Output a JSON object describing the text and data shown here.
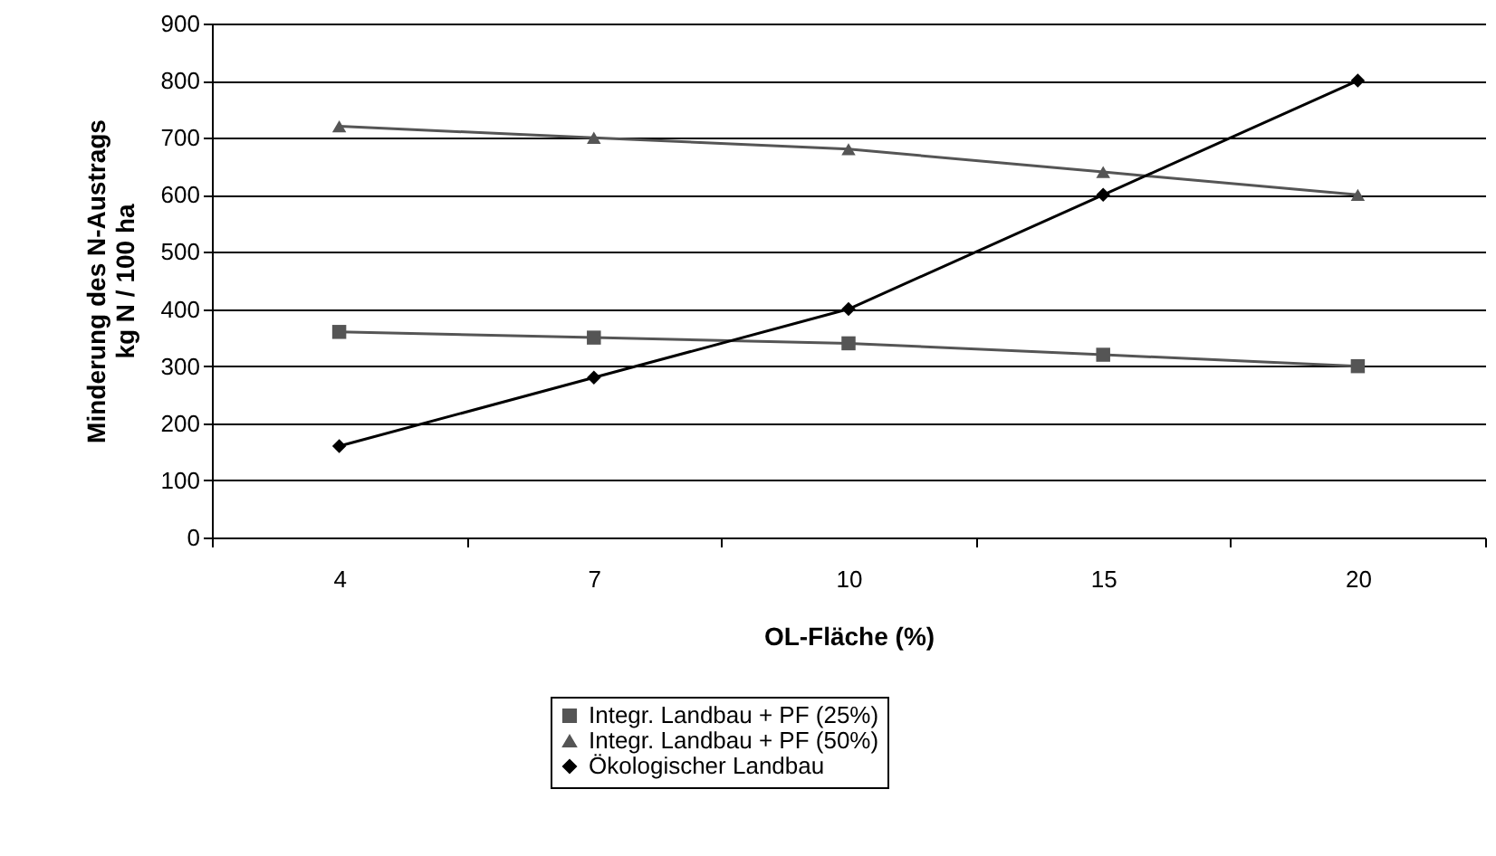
{
  "chart_data": {
    "type": "line",
    "xlabel": "OL-Fläche (%)",
    "ylabel": "Minderung des N-Austrags\nkg N / 100 ha",
    "categories": [
      "4",
      "7",
      "10",
      "15",
      "20"
    ],
    "ylim": [
      0,
      900
    ],
    "yticks": [
      0,
      100,
      200,
      300,
      400,
      500,
      600,
      700,
      800,
      900
    ],
    "grid": "y",
    "legend": "bottom",
    "line_style": "solid",
    "series": [
      {
        "name": "Integr. Landbau + PF (25%)",
        "color": "#555555",
        "marker": "square",
        "values": [
          360,
          350,
          340,
          320,
          300
        ]
      },
      {
        "name": "Integr. Landbau + PF (50%)",
        "color": "#555555",
        "marker": "triangle",
        "values": [
          720,
          700,
          680,
          640,
          600
        ]
      },
      {
        "name": "Ökologischer Landbau",
        "color": "#000000",
        "marker": "diamond",
        "values": [
          160,
          280,
          400,
          600,
          800
        ]
      }
    ]
  }
}
